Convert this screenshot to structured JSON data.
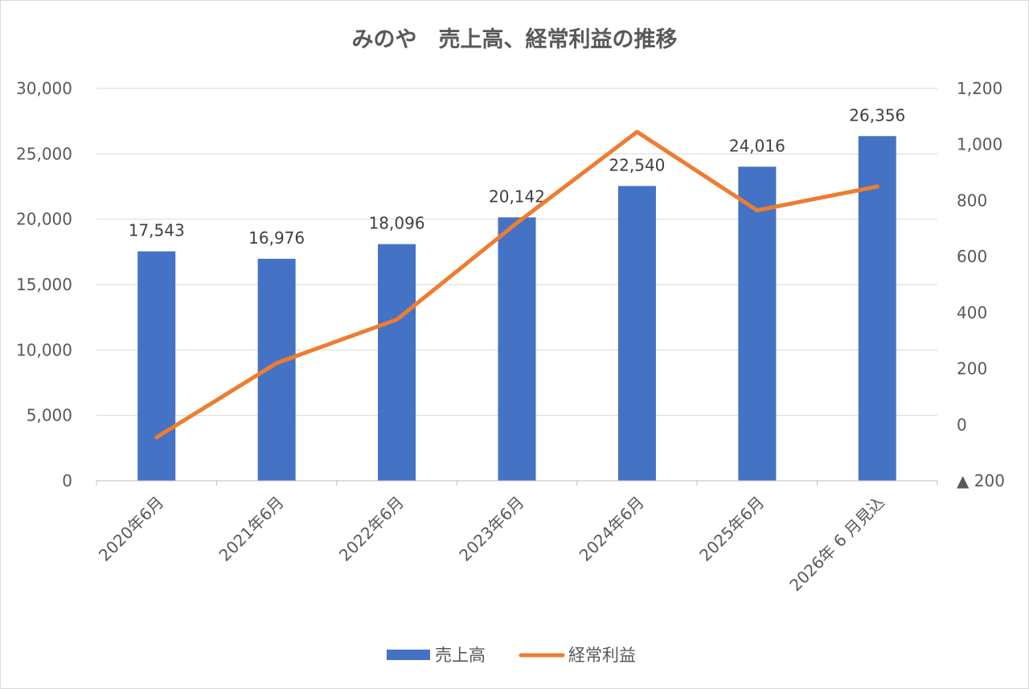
{
  "chart_data": {
    "type": "bar",
    "title": "みのや　売上高、経常利益の推移",
    "categories": [
      "2020年6月",
      "2021年6月",
      "2022年6月",
      "2023年6月",
      "2024年6月",
      "2025年6月",
      "2026年 6 月見込"
    ],
    "series": [
      {
        "name": "売上高",
        "type": "bar",
        "axis": "left",
        "color": "#4472c4",
        "values": [
          17543,
          16976,
          18096,
          20142,
          22540,
          24016,
          26356
        ],
        "data_labels": [
          "17,543",
          "16,976",
          "18,096",
          "20,142",
          "22,540",
          "24,016",
          "26,356"
        ]
      },
      {
        "name": "経常利益",
        "type": "line",
        "axis": "right",
        "color": "#ed7d31",
        "values": [
          -45,
          220,
          375,
          720,
          1045,
          765,
          850
        ]
      }
    ],
    "left_axis": {
      "ylim": [
        0,
        30000
      ],
      "ticks": [
        0,
        5000,
        10000,
        15000,
        20000,
        25000,
        30000
      ],
      "tick_labels": [
        "0",
        "5,000",
        "10,000",
        "15,000",
        "20,000",
        "25,000",
        "30,000"
      ]
    },
    "right_axis": {
      "ylim": [
        -200,
        1200
      ],
      "ticks": [
        -200,
        0,
        200,
        400,
        600,
        800,
        1000,
        1200
      ],
      "tick_labels": [
        "▲ 200",
        "0",
        "200",
        "400",
        "600",
        "800",
        "1,000",
        "1,200"
      ]
    },
    "grid": true,
    "legend": {
      "position": "bottom",
      "entries": [
        "売上高",
        "経常利益"
      ]
    }
  }
}
